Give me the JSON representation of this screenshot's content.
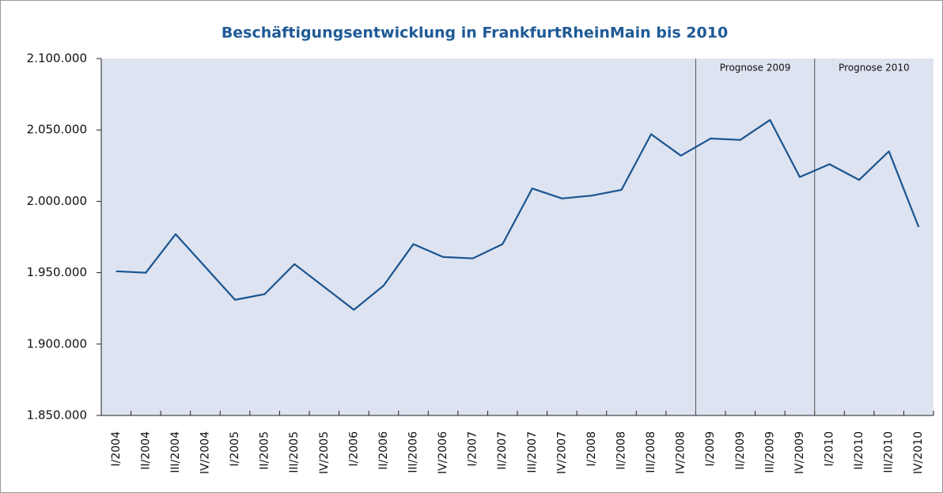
{
  "chart_data": {
    "type": "line",
    "title": "Beschäftigungsentwicklung in FrankfurtRheinMain bis 2010",
    "categories": [
      "I/2004",
      "II/2004",
      "III/2004",
      "IV/2004",
      "I/2005",
      "II/2005",
      "III/2005",
      "IV/2005",
      "I/2006",
      "II/2006",
      "III/2006",
      "IV/2006",
      "I/2007",
      "II/2007",
      "III/2007",
      "IV/2007",
      "I/2008",
      "II/2008",
      "III/2008",
      "IV/2008",
      "I/2009",
      "II/2009",
      "III/2009",
      "IV/2009",
      "I/2010",
      "II/2010",
      "III/2010",
      "IV/2010"
    ],
    "values": [
      1951000,
      1950000,
      1977000,
      1954000,
      1931000,
      1935000,
      1956000,
      1940000,
      1924000,
      1941000,
      1970000,
      1961000,
      1960000,
      1970000,
      2009000,
      2002000,
      2004000,
      2008000,
      2047000,
      2032000,
      2044000,
      2043000,
      2057000,
      2017000,
      2026000,
      2015000,
      2035000,
      1982000
    ],
    "color": "#1a5490",
    "ylim": [
      1850000,
      2100000
    ],
    "yticks": [
      {
        "value": 1850000,
        "label": "1.850.000"
      },
      {
        "value": 1900000,
        "label": "1.900.000"
      },
      {
        "value": 1950000,
        "label": "1.950.000"
      },
      {
        "value": 2000000,
        "label": "2.000.000"
      },
      {
        "value": 2050000,
        "label": "2.050.000"
      },
      {
        "value": 2100000,
        "label": "2.100.000"
      }
    ],
    "annotations": [
      {
        "text": "Prognose 2009",
        "x": "I/2009"
      },
      {
        "text": "Prognose 2010",
        "x": "I/2010"
      }
    ]
  }
}
